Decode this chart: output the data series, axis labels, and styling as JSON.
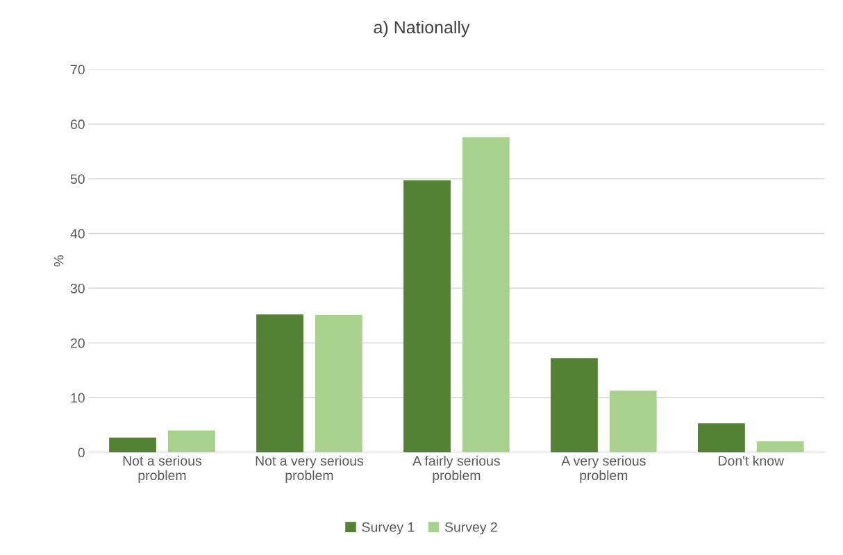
{
  "chart_data": {
    "type": "bar",
    "title": "a) Nationally",
    "ylabel": "%",
    "categories": [
      "Not a serious\nproblem",
      "Not a very serious\nproblem",
      "A fairly serious\nproblem",
      "A very serious\nproblem",
      "Don't know"
    ],
    "series": [
      {
        "name": "Survey 1",
        "color": "#548235",
        "values": [
          2.7,
          25.2,
          49.7,
          17.2,
          5.3
        ]
      },
      {
        "name": "Survey 2",
        "color": "#a9d18e",
        "values": [
          4.0,
          25.1,
          57.6,
          11.3,
          2.0
        ]
      }
    ],
    "ylim": [
      0,
      70
    ],
    "yticks": [
      0,
      10,
      20,
      30,
      40,
      50,
      60,
      70
    ],
    "grid": "y",
    "legend": "bottom"
  }
}
